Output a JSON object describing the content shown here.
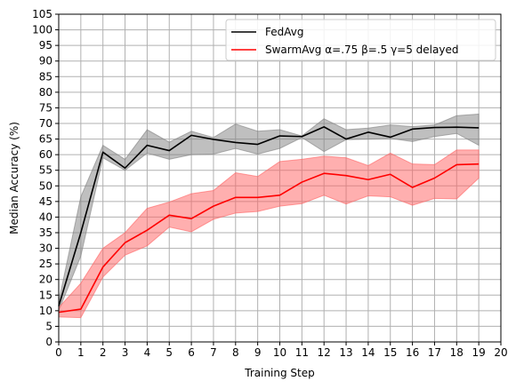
{
  "chart_data": {
    "type": "line",
    "title": "",
    "xlabel": "Training Step",
    "ylabel": "Median Accuracy (%)",
    "xlim": [
      0,
      20
    ],
    "ylim": [
      0,
      105
    ],
    "xticks": [
      0,
      1,
      2,
      3,
      4,
      5,
      6,
      7,
      8,
      9,
      10,
      11,
      12,
      13,
      14,
      15,
      16,
      17,
      18,
      19,
      20
    ],
    "yticks": [
      0,
      5,
      10,
      15,
      20,
      25,
      30,
      35,
      40,
      45,
      50,
      55,
      60,
      65,
      70,
      75,
      80,
      85,
      90,
      95,
      100,
      105
    ],
    "grid": true,
    "legend_position": "top-right",
    "x": [
      0,
      1,
      2,
      3,
      4,
      5,
      6,
      7,
      8,
      9,
      10,
      11,
      12,
      13,
      14,
      15,
      16,
      17,
      18,
      19
    ],
    "series": [
      {
        "name": "FedAvg",
        "color": "#000000",
        "band_color": "#808080",
        "values": [
          11.5,
          35.0,
          60.8,
          55.7,
          63.0,
          61.3,
          66.2,
          64.9,
          63.9,
          63.3,
          66.0,
          65.8,
          68.9,
          65.0,
          67.2,
          65.6,
          68.2,
          68.7,
          68.8,
          68.6
        ],
        "lower": [
          10.0,
          27.5,
          59.0,
          55.0,
          60.5,
          58.5,
          60.0,
          60.2,
          62.0,
          60.2,
          62.0,
          65.5,
          61.0,
          64.8,
          65.0,
          65.2,
          64.2,
          65.8,
          66.8,
          63.0
        ],
        "upper": [
          13.0,
          46.5,
          63.0,
          58.5,
          68.0,
          64.0,
          67.5,
          65.5,
          69.8,
          67.5,
          68.0,
          66.0,
          71.5,
          68.0,
          68.5,
          69.5,
          69.0,
          69.5,
          72.5,
          73.0
        ]
      },
      {
        "name": "SwarmAvg α=.75 β=.5 γ=5 delayed",
        "color": "#ff0000",
        "band_color": "#ff6060",
        "values": [
          9.5,
          10.5,
          24.0,
          31.8,
          35.8,
          40.6,
          39.5,
          43.5,
          46.3,
          46.3,
          47.0,
          51.2,
          54.0,
          53.3,
          52.0,
          53.7,
          49.5,
          52.5,
          56.8,
          57.0
        ],
        "lower": [
          8.0,
          7.8,
          20.8,
          27.8,
          30.8,
          36.8,
          35.3,
          39.3,
          41.3,
          41.8,
          43.5,
          44.3,
          47.0,
          44.2,
          46.8,
          46.5,
          43.8,
          46.0,
          45.8,
          52.5
        ],
        "upper": [
          11.0,
          18.8,
          30.0,
          35.0,
          42.8,
          44.8,
          47.5,
          48.5,
          54.2,
          53.0,
          57.8,
          58.5,
          59.5,
          59.0,
          56.5,
          60.5,
          57.0,
          56.8,
          61.5,
          61.5
        ]
      }
    ]
  }
}
